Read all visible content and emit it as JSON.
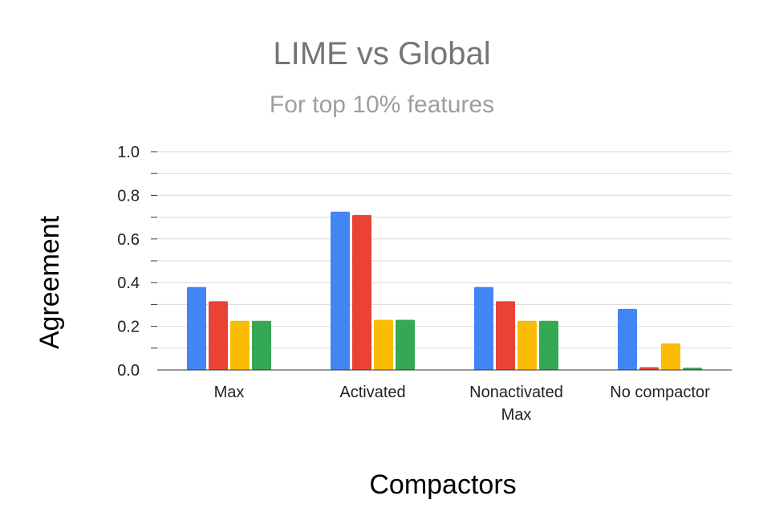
{
  "chart_data": {
    "type": "bar",
    "title": "LIME vs Global",
    "subtitle": "For top 10% features",
    "xlabel": "Compactors",
    "ylabel": "Agreement",
    "categories": [
      [
        "Max"
      ],
      [
        "Activated"
      ],
      [
        "Nonactivated",
        "Max"
      ],
      [
        "No compactor"
      ]
    ],
    "series": [
      {
        "color": "#4285f4",
        "values": [
          0.38,
          0.725,
          0.38,
          0.28
        ]
      },
      {
        "color": "#ea4335",
        "values": [
          0.315,
          0.71,
          0.315,
          0.013
        ]
      },
      {
        "color": "#fbbc04",
        "values": [
          0.225,
          0.23,
          0.225,
          0.122
        ]
      },
      {
        "color": "#34a853",
        "values": [
          0.225,
          0.23,
          0.225,
          0.01
        ]
      }
    ],
    "ylim": [
      0,
      1.0
    ],
    "yticks": [
      "0.0",
      "0.2",
      "0.4",
      "0.6",
      "0.8",
      "1.0"
    ],
    "grid": true,
    "legend": "none"
  }
}
